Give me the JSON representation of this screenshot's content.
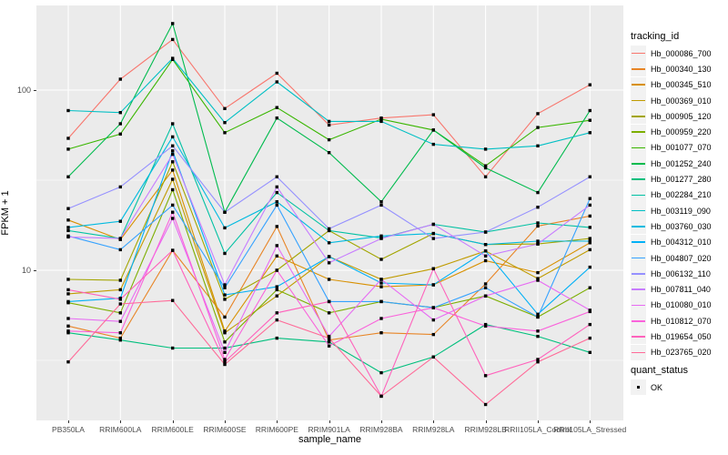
{
  "figure": {
    "y_axis": {
      "title": "FPKM + 1",
      "tick_labels": [
        "100",
        "10"
      ],
      "tick_values": [
        100,
        10
      ]
    },
    "x_axis": {
      "title": "sample_name"
    },
    "legend": {
      "tracking_title": "tracking_id",
      "quant_title": "quant_status",
      "quant_ok_label": "OK"
    },
    "style": {
      "panel_bg": "#EBEBEB",
      "grid_color": "#FFFFFF",
      "axis_text_color": "#4D4D4D",
      "point_color": "#000000"
    }
  },
  "chart_data": {
    "type": "line",
    "title": "",
    "xlabel": "sample_name",
    "ylabel": "FPKM + 1",
    "yscale": "log10",
    "ylim": [
      1.5,
      290
    ],
    "yticks": [
      10,
      100
    ],
    "minor_gridlines_y": [
      3.162,
      31.62
    ],
    "grid": true,
    "legend_position": "right",
    "point_marker": "filled-black-square",
    "categories": [
      "PB350LA",
      "RRIM600LA",
      "RRIM600LE",
      "RRIM600SE",
      "RRIM600PE",
      "RRIM901LA",
      "RRIM928BA",
      "RRIM928LA",
      "RRIM928LB",
      "RRII105LA_Control",
      "RRII105LA_Stressed"
    ],
    "series": [
      {
        "name": "Hb_000086_700",
        "color": "#F8766D",
        "values": [
          54,
          115,
          191,
          79,
          124,
          64,
          70,
          73,
          33,
          74,
          107
        ]
      },
      {
        "name": "Hb_000340_130",
        "color": "#E88526",
        "values": [
          4.9,
          4.2,
          12.9,
          5.5,
          17.5,
          4.1,
          4.5,
          4.4,
          8.4,
          17.6,
          20
        ]
      },
      {
        "name": "Hb_000345_510",
        "color": "#D89000",
        "values": [
          19,
          14.8,
          36,
          4.6,
          12,
          8.9,
          8.1,
          8.3,
          11.3,
          9.7,
          14.2
        ]
      },
      {
        "name": "Hb_000369_010",
        "color": "#C09B00",
        "values": [
          7.4,
          7.8,
          32,
          4.5,
          7.2,
          11.9,
          8.9,
          10.2,
          12.8,
          9,
          13
        ]
      },
      {
        "name": "Hb_000905_120",
        "color": "#A3A500",
        "values": [
          8.9,
          8.8,
          40,
          6.9,
          10,
          16.6,
          11.5,
          16,
          13.9,
          14,
          15
        ]
      },
      {
        "name": "Hb_000959_220",
        "color": "#7CAE00",
        "values": [
          6.6,
          5.8,
          28,
          4,
          7.8,
          5.8,
          6.7,
          6.2,
          7.2,
          5.5,
          8
        ]
      },
      {
        "name": "Hb_001077_070",
        "color": "#39B600",
        "values": [
          47,
          57,
          148,
          58,
          80,
          53,
          69,
          60,
          38,
          62,
          68
        ]
      },
      {
        "name": "Hb_001252_240",
        "color": "#00BB4E",
        "values": [
          33,
          65,
          234,
          21,
          70,
          45,
          24,
          60,
          37,
          27,
          77
        ]
      },
      {
        "name": "Hb_001277_280",
        "color": "#00BF7D",
        "values": [
          4.5,
          4.1,
          3.7,
          3.7,
          4.2,
          4,
          2.7,
          3.3,
          5,
          4.3,
          3.5
        ]
      },
      {
        "name": "Hb_002284_210",
        "color": "#00C1A3",
        "values": [
          16.6,
          15,
          65,
          12.4,
          27,
          16.6,
          15.1,
          18,
          16.3,
          18.3,
          17.3
        ]
      },
      {
        "name": "Hb_003119_090",
        "color": "#00BFC4",
        "values": [
          77,
          75,
          150,
          66,
          111,
          67,
          67,
          50,
          47,
          49,
          58
        ]
      },
      {
        "name": "Hb_003760_030",
        "color": "#00BAE0",
        "values": [
          17.3,
          18.7,
          55,
          17.2,
          24,
          14.2,
          15.5,
          16,
          13.9,
          14.5,
          14.5
        ]
      },
      {
        "name": "Hb_004312_010",
        "color": "#00B0F6",
        "values": [
          6.7,
          7,
          46,
          7.3,
          8.1,
          11.9,
          8.5,
          8.3,
          12.8,
          5.7,
          10.4
        ]
      },
      {
        "name": "Hb_004807_020",
        "color": "#35A2FF",
        "values": [
          15.5,
          13,
          23,
          8,
          23,
          6.7,
          6.7,
          6.2,
          8,
          5.5,
          25
        ]
      },
      {
        "name": "Hb_006132_110",
        "color": "#9590FF",
        "values": [
          22,
          29,
          49,
          21,
          33,
          17,
          23,
          15,
          16.3,
          22.4,
          33
        ]
      },
      {
        "name": "Hb_007811_040",
        "color": "#C77CFF",
        "values": [
          15.3,
          15,
          44,
          8.3,
          29,
          11,
          15,
          18,
          12,
          14,
          23
        ]
      },
      {
        "name": "Hb_010080_010",
        "color": "#E76BF3",
        "values": [
          5.4,
          5.2,
          19.4,
          3.5,
          13.7,
          4.3,
          8.9,
          5.3,
          7.2,
          8.8,
          6
        ]
      },
      {
        "name": "Hb_010812_070",
        "color": "#FA62DB",
        "values": [
          4.6,
          4.5,
          21,
          3.2,
          10,
          3.8,
          5.4,
          6.2,
          4.9,
          4.6,
          5.9
        ]
      },
      {
        "name": "Hb_019654_050",
        "color": "#FF62BC",
        "values": [
          7.8,
          6.9,
          12.9,
          3.1,
          5.8,
          6.7,
          2,
          10.2,
          2.6,
          3.2,
          5
        ]
      },
      {
        "name": "Hb_023765_020",
        "color": "#FF6A98",
        "values": [
          3.1,
          6.5,
          6.8,
          3,
          5.3,
          4.2,
          2,
          3.3,
          1.8,
          3.1,
          4.2
        ]
      }
    ]
  }
}
